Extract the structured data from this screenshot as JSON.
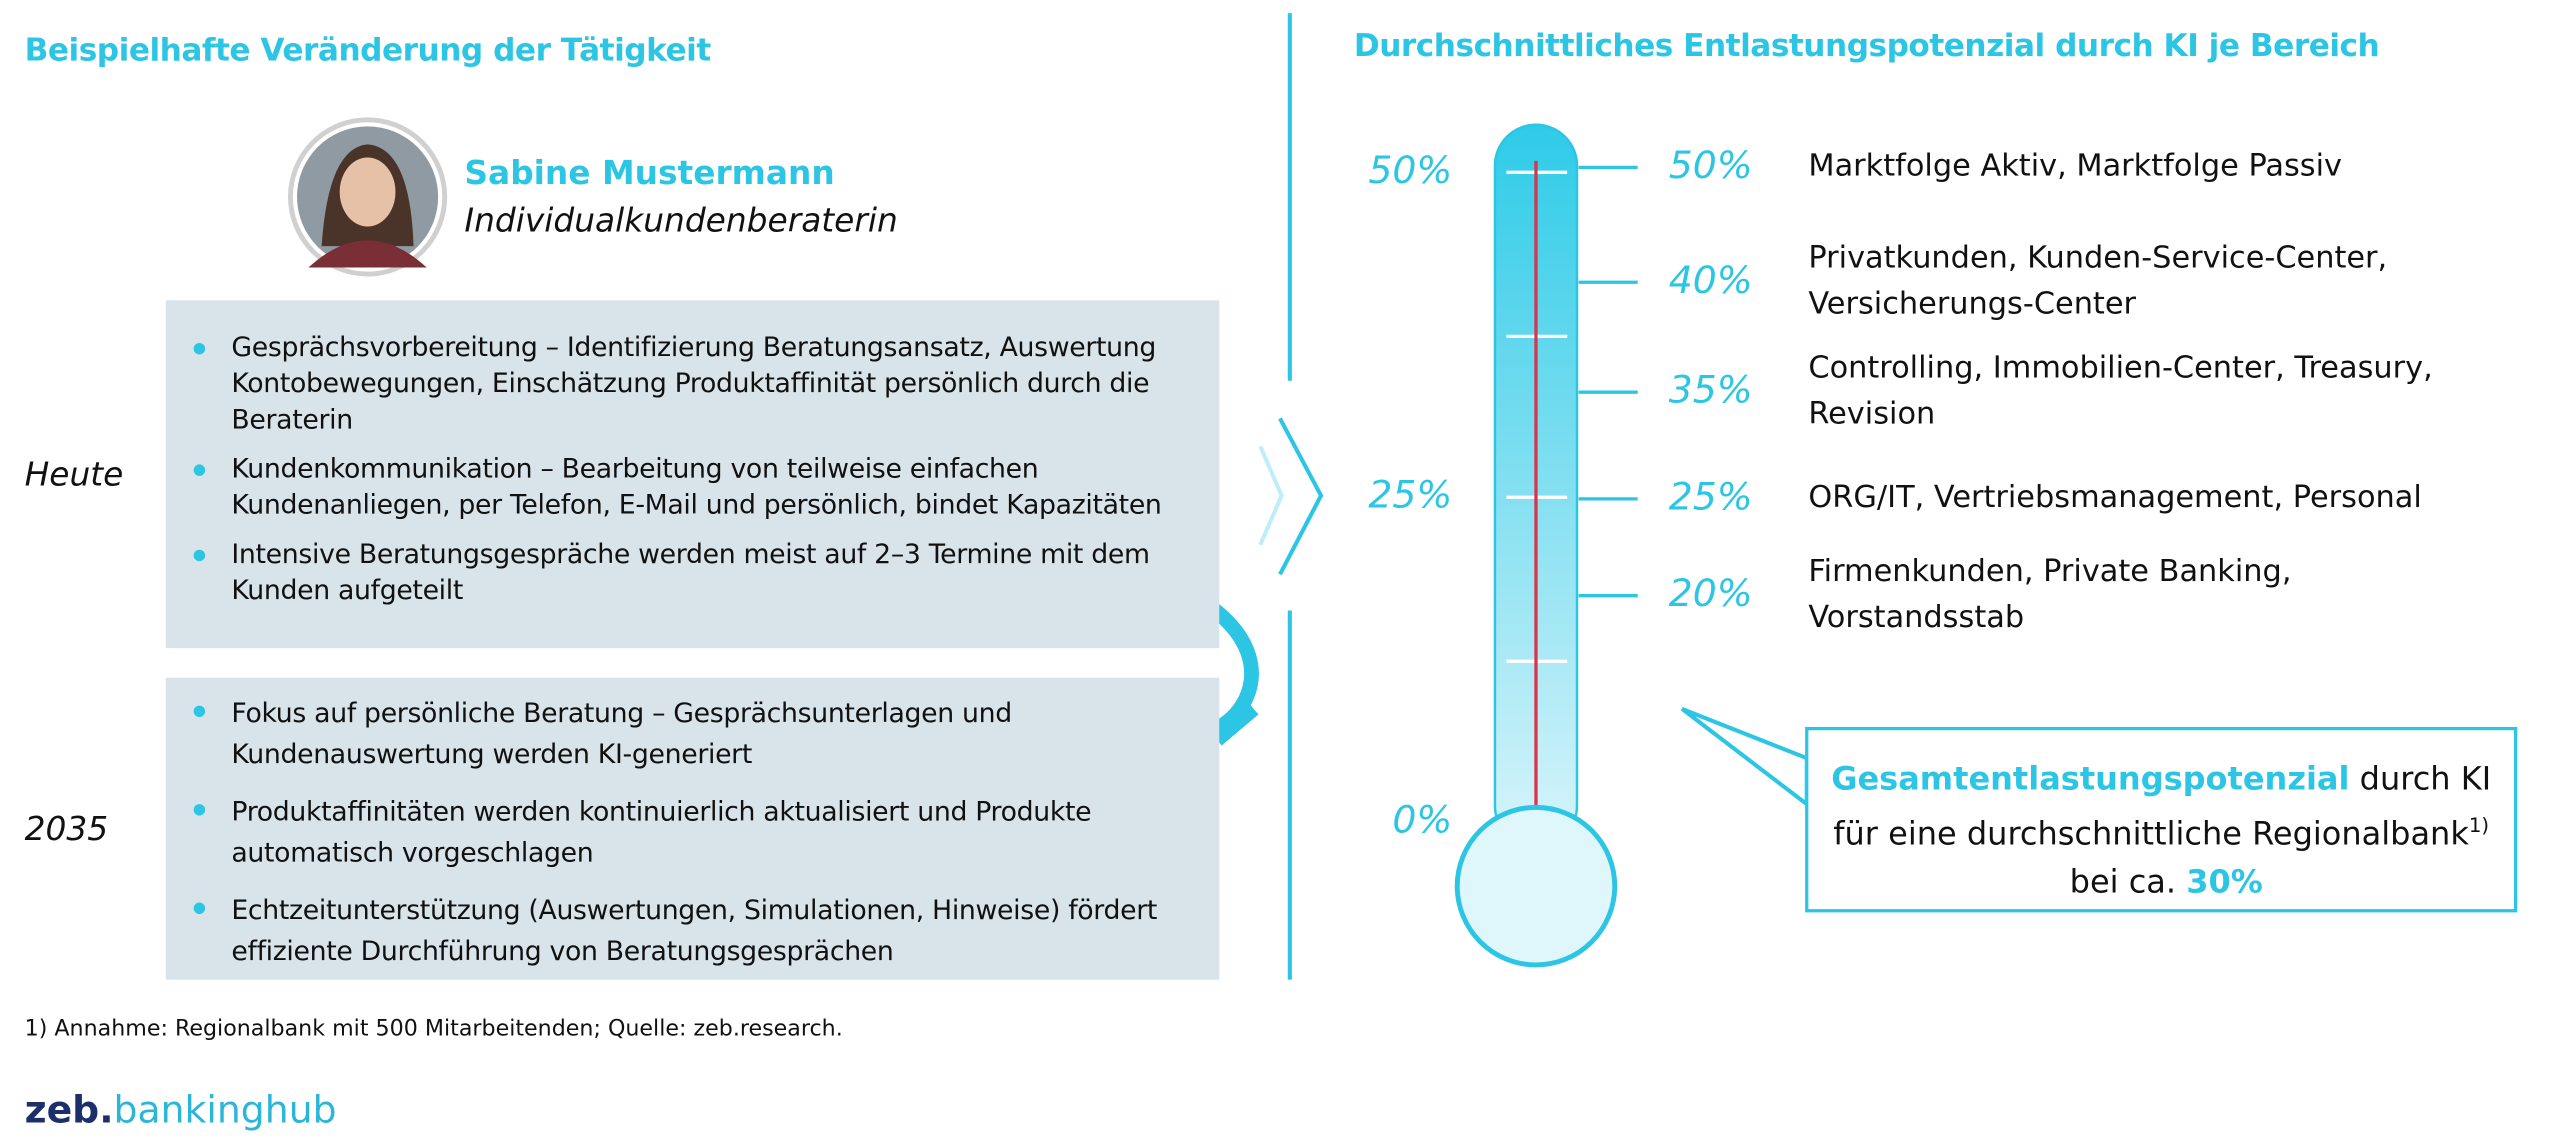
{
  "left": {
    "title": "Beispielhafte Veränderung der Tätigkeit",
    "person": {
      "name": "Sabine Mustermann",
      "role": "Individualkundenberaterin"
    },
    "sections": [
      {
        "label": "Heute",
        "bullets": [
          "Gesprächsvorbereitung – Identifizierung Beratungsansatz, Auswertung Kontobewegungen, Einschätzung Produktaffinität persönlich durch die Beraterin",
          "Kundenkommunikation – Bearbeitung von teilweise einfachen Kundenanliegen, per Telefon, E-Mail und persönlich, bindet Kapazitäten",
          "Intensive Beratungsgespräche werden meist auf 2–3 Termine mit dem Kunden aufgeteilt"
        ]
      },
      {
        "label": "2035",
        "bullets": [
          "Fokus auf persönliche Beratung – Gesprächsunterlagen und Kundenauswertung werden KI-generiert",
          "Produktaffinitäten werden kontinuierlich aktualisiert und Produkte automatisch vorgeschlagen",
          "Echtzeitunterstützung (Auswertungen, Simulationen, Hinweise) fördert effiziente Durchführung von Beratungsgesprächen"
        ]
      }
    ]
  },
  "right": {
    "title": "Durchschnittliches Entlastungspotenzial durch KI je Bereich",
    "scale": {
      "ticks": [
        {
          "value": 50,
          "label": "50%"
        },
        {
          "value": 25,
          "label": "25%"
        },
        {
          "value": 0,
          "label": "0%"
        }
      ]
    },
    "areas": [
      {
        "value": 50,
        "label": "50%",
        "text": "Marktfolge Aktiv, Marktfolge Passiv"
      },
      {
        "value": 40,
        "label": "40%",
        "text": "Privatkunden, Kunden-Service-Center, Versicherungs-Center"
      },
      {
        "value": 35,
        "label": "35%",
        "text": "Controlling, Immobilien-Center, Treasury, Revision"
      },
      {
        "value": 25,
        "label": "25%",
        "text": "ORG/IT, Vertriebsmanagement, Personal"
      },
      {
        "value": 20,
        "label": "20%",
        "text": "Firmenkunden, Private Banking, Vorstandsstab"
      }
    ],
    "callout": {
      "highlight": "Gesamtentlastungspotenzial",
      "text1": " durch KI für eine durchschnittliche Regionalbank",
      "note": "1)",
      "text2": " bei ca. ",
      "total": "30%"
    }
  },
  "footnote": "1) Annahme: Regionalbank mit 500 Mitarbeitenden; Quelle: zeb.research.",
  "logo": {
    "brand": "zeb.",
    "product": "bankinghub"
  }
}
